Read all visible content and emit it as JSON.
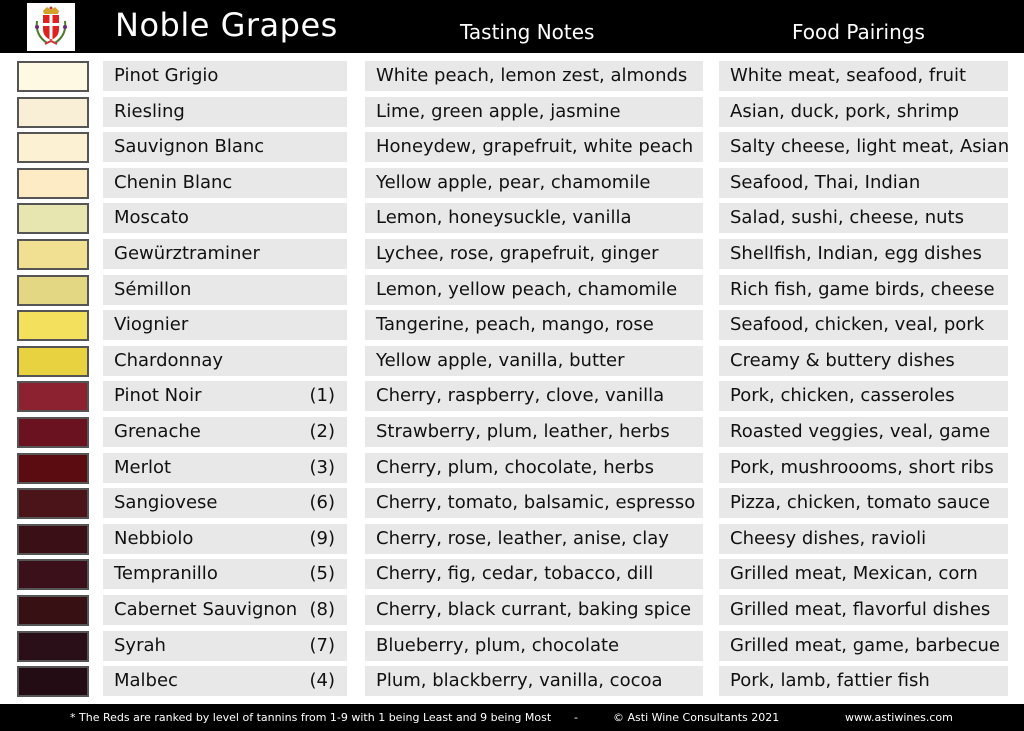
{
  "header": {
    "title": "Noble Grapes",
    "col2": "Tasting Notes",
    "col3": "Food Pairings",
    "logo": "Asti coat of arms"
  },
  "colors": {
    "header_bg": "#000000",
    "cell_bg": "#e8e8e8"
  },
  "rows": [
    {
      "grape": "Pinot Grigio",
      "rank": "",
      "notes": "White peach, lemon zest, almonds",
      "food": "White meat, seafood, fruit",
      "color": "#fdf9e3"
    },
    {
      "grape": "Riesling",
      "rank": "",
      "notes": "Lime, green apple, jasmine",
      "food": "Asian, duck, pork, shrimp",
      "color": "#f9efd6"
    },
    {
      "grape": "Sauvignon Blanc",
      "rank": "",
      "notes": "Honeydew, grapefruit, white peach",
      "food": "Salty cheese, light meat, Asian",
      "color": "#fcf2d3"
    },
    {
      "grape": "Chenin Blanc",
      "rank": "",
      "notes": "Yellow apple, pear, chamomile",
      "food": "Seafood, Thai, Indian",
      "color": "#fdebc6"
    },
    {
      "grape": "Moscato",
      "rank": "",
      "notes": "Lemon, honeysuckle, vanilla",
      "food": "Salad, sushi, cheese, nuts",
      "color": "#e7e6b0"
    },
    {
      "grape": "Gewürztraminer",
      "rank": "",
      "notes": "Lychee, rose, grapefruit, ginger",
      "food": "Shellfish, Indian, egg dishes",
      "color": "#f2e092"
    },
    {
      "grape": "Sémillon",
      "rank": "",
      "notes": "Lemon, yellow peach, chamomile",
      "food": "Rich fish, game birds, cheese",
      "color": "#e3d783"
    },
    {
      "grape": "Viognier",
      "rank": "",
      "notes": "Tangerine, peach, mango, rose",
      "food": "Seafood, chicken, veal, pork",
      "color": "#f3e05c"
    },
    {
      "grape": "Chardonnay",
      "rank": "",
      "notes": "Yellow apple, vanilla, butter",
      "food": "Creamy & buttery dishes",
      "color": "#e8d23f"
    },
    {
      "grape": "Pinot Noir",
      "rank": "(1)",
      "notes": "Cherry, raspberry, clove, vanilla",
      "food": "Pork, chicken, casseroles",
      "color": "#8c2230"
    },
    {
      "grape": "Grenache",
      "rank": "(2)",
      "notes": "Strawberry, plum, leather, herbs",
      "food": "Roasted veggies, veal, game",
      "color": "#6b1220"
    },
    {
      "grape": "Merlot",
      "rank": "(3)",
      "notes": "Cherry, plum, chocolate, herbs",
      "food": "Pork, mushroooms, short ribs",
      "color": "#5a0c10"
    },
    {
      "grape": "Sangiovese",
      "rank": "(6)",
      "notes": "Cherry, tomato, balsamic, espresso",
      "food": "Pizza, chicken, tomato sauce",
      "color": "#4a1418"
    },
    {
      "grape": "Nebbiolo",
      "rank": "(9)",
      "notes": "Cherry, rose, leather, anise, clay",
      "food": "Cheesy dishes, ravioli",
      "color": "#3a1016"
    },
    {
      "grape": "Tempranillo",
      "rank": "(5)",
      "notes": "Cherry, fig, cedar, tobacco, dill",
      "food": "Grilled meat, Mexican, corn",
      "color": "#3c101a"
    },
    {
      "grape": "Cabernet Sauvignon",
      "rank": "(8)",
      "notes": "Cherry, black currant, baking spice",
      "food": "Grilled meat, flavorful dishes",
      "color": "#361012"
    },
    {
      "grape": "Syrah",
      "rank": "(7)",
      "notes": "Blueberry, plum, chocolate",
      "food": "Grilled meat, game, barbecue",
      "color": "#2a0e18"
    },
    {
      "grape": "Malbec",
      "rank": "(4)",
      "notes": "Plum, blackberry, vanilla, cocoa",
      "food": "Pork, lamb, fattier fish",
      "color": "#240c14"
    }
  ],
  "footer": {
    "note": "* The Reds are ranked by level of tannins from 1-9 with 1 being Least and 9 being Most",
    "sep": "-",
    "copyright": "© Asti Wine Consultants 2021",
    "website": "www.astiwines.com"
  }
}
